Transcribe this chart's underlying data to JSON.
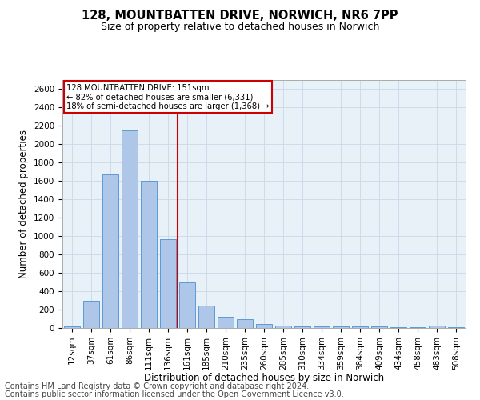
{
  "title1": "128, MOUNTBATTEN DRIVE, NORWICH, NR6 7PP",
  "title2": "Size of property relative to detached houses in Norwich",
  "xlabel": "Distribution of detached houses by size in Norwich",
  "ylabel": "Number of detached properties",
  "categories": [
    "12sqm",
    "37sqm",
    "61sqm",
    "86sqm",
    "111sqm",
    "136sqm",
    "161sqm",
    "185sqm",
    "210sqm",
    "235sqm",
    "260sqm",
    "285sqm",
    "310sqm",
    "334sqm",
    "359sqm",
    "384sqm",
    "409sqm",
    "434sqm",
    "458sqm",
    "483sqm",
    "508sqm"
  ],
  "values": [
    20,
    300,
    1670,
    2150,
    1600,
    970,
    500,
    245,
    120,
    100,
    45,
    30,
    15,
    15,
    20,
    15,
    20,
    10,
    5,
    25,
    5
  ],
  "bar_color": "#aec6e8",
  "bar_edgecolor": "#5b9bd5",
  "vline_x": 5.5,
  "vline_color": "#cc0000",
  "annotation_lines": [
    "128 MOUNTBATTEN DRIVE: 151sqm",
    "← 82% of detached houses are smaller (6,331)",
    "18% of semi-detached houses are larger (1,368) →"
  ],
  "annotation_box_color": "#cc0000",
  "ylim": [
    0,
    2700
  ],
  "yticks": [
    0,
    200,
    400,
    600,
    800,
    1000,
    1200,
    1400,
    1600,
    1800,
    2000,
    2200,
    2400,
    2600
  ],
  "footnote1": "Contains HM Land Registry data © Crown copyright and database right 2024.",
  "footnote2": "Contains public sector information licensed under the Open Government Licence v3.0.",
  "bg_color": "#ffffff",
  "grid_color": "#c8d8e8",
  "title1_fontsize": 10.5,
  "title2_fontsize": 9,
  "xlabel_fontsize": 8.5,
  "ylabel_fontsize": 8.5,
  "tick_fontsize": 7.5,
  "footnote_fontsize": 7
}
